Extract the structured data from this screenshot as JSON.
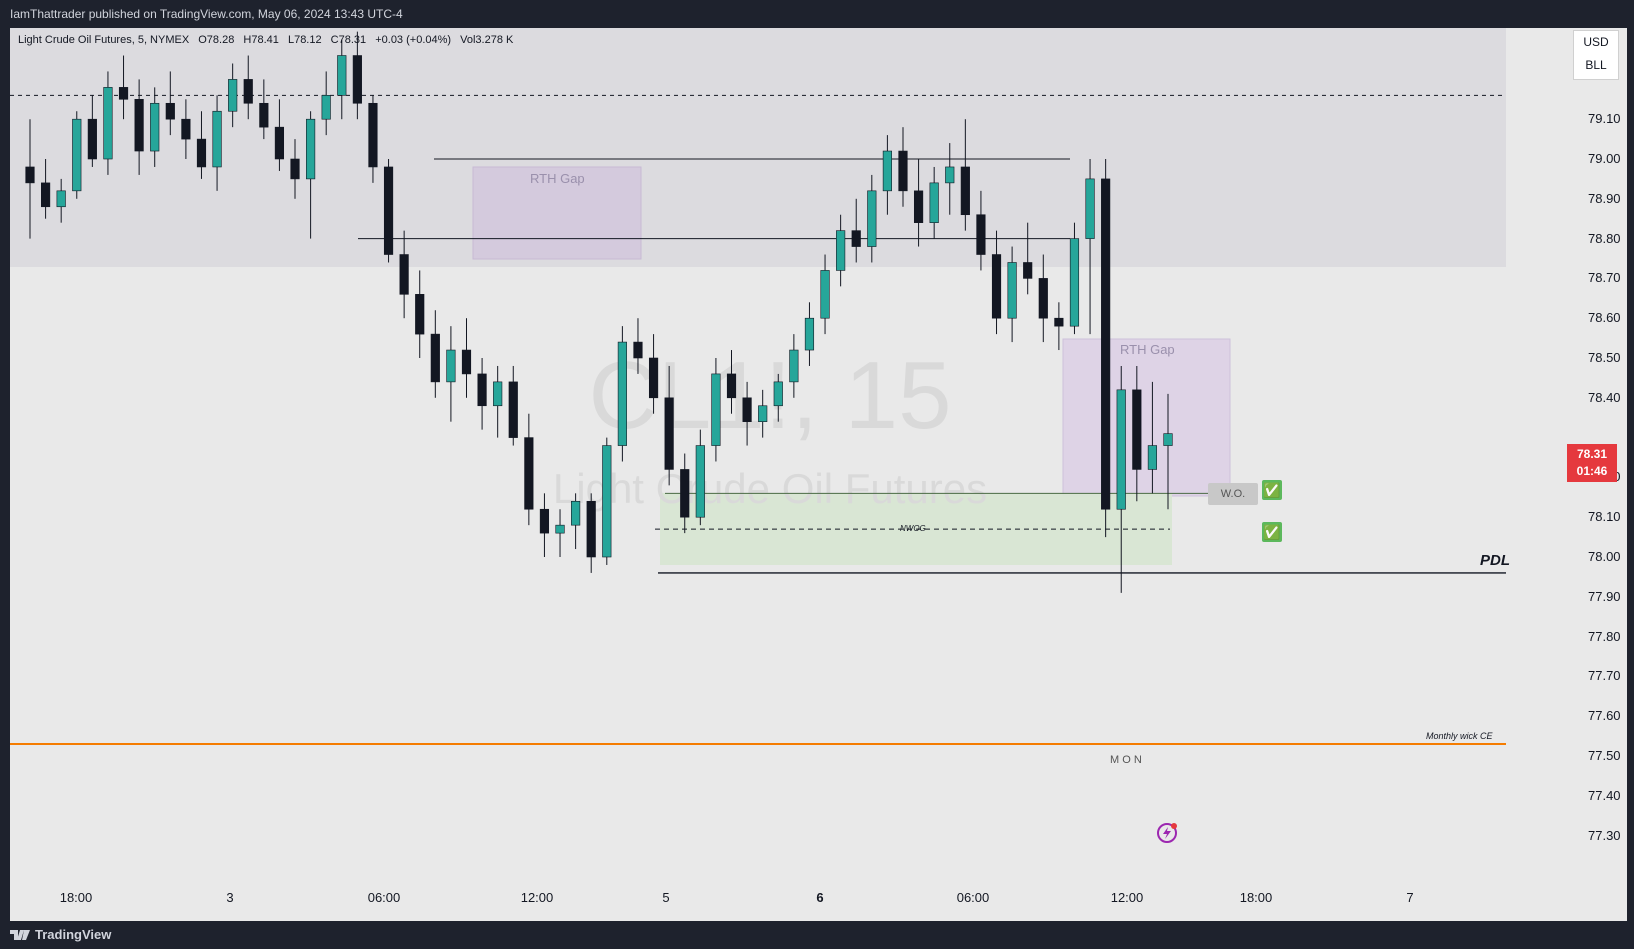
{
  "header": {
    "published": "IamThattrader published on TradingView.com, May 06, 2024 13:43 UTC-4"
  },
  "footer": {
    "brand": "TradingView"
  },
  "symbol": {
    "name": "Light Crude Oil Futures, 5, NYMEX",
    "open": "O78.28",
    "high": "H78.41",
    "low": "L78.12",
    "close": "C78.31",
    "change": "+0.03 (+0.04%)",
    "volume": "Vol3.278 K"
  },
  "currency": {
    "label": "USD",
    "unit": "BLL"
  },
  "current_price": {
    "price": "78.31",
    "countdown": "01:46"
  },
  "watermark": {
    "ticker": "CL1!, 15",
    "title": "Light Crude Oil Futures"
  },
  "annotations": {
    "rth_gap_1": "RTH Gap",
    "rth_gap_2": "RTH Gap",
    "nwog": "NWOG",
    "wo": "W.O.",
    "pdl": "PDL",
    "monthly_wick": "Monthly wick CE",
    "mon": "M O N",
    "check_1": "✅",
    "check_2": "✅"
  },
  "colors": {
    "up": "#26a69a",
    "down": "#131722",
    "accent": "#f57c00",
    "price_tag": "#e5393e"
  },
  "chart_data": {
    "type": "candlestick",
    "y_ticks": [
      "79.10",
      "79.00",
      "78.90",
      "78.80",
      "78.70",
      "78.60",
      "78.50",
      "78.40",
      "78.20",
      "78.10",
      "78.00",
      "77.90",
      "77.80",
      "77.70",
      "77.60",
      "77.50",
      "77.40",
      "77.30"
    ],
    "x_ticks": [
      {
        "label": "18:00",
        "bold": false
      },
      {
        "label": "3",
        "bold": false
      },
      {
        "label": "06:00",
        "bold": false
      },
      {
        "label": "12:00",
        "bold": false
      },
      {
        "label": "5",
        "bold": false
      },
      {
        "label": "6",
        "bold": true
      },
      {
        "label": "06:00",
        "bold": false
      },
      {
        "label": "12:00",
        "bold": false
      },
      {
        "label": "18:00",
        "bold": false
      },
      {
        "label": "7",
        "bold": false
      }
    ],
    "ylim": [
      77.25,
      79.25
    ],
    "levels": {
      "dashed_top": 79.16,
      "rth_high_line": 79.0,
      "rth_low_line": 78.8,
      "wo": 78.16,
      "nwog_mid": 78.07,
      "pdl": 77.96,
      "monthly_wick_ce": 77.53
    },
    "candles": [
      [
        78.98,
        79.1,
        78.8,
        78.94
      ],
      [
        78.94,
        79.0,
        78.85,
        78.88
      ],
      [
        78.88,
        78.95,
        78.84,
        78.92
      ],
      [
        78.92,
        79.12,
        78.9,
        79.1
      ],
      [
        79.1,
        79.16,
        78.98,
        79.0
      ],
      [
        79.0,
        79.22,
        78.96,
        79.18
      ],
      [
        79.18,
        79.26,
        79.1,
        79.15
      ],
      [
        79.15,
        79.2,
        78.96,
        79.02
      ],
      [
        79.02,
        79.18,
        78.98,
        79.14
      ],
      [
        79.14,
        79.22,
        79.06,
        79.1
      ],
      [
        79.1,
        79.15,
        79.0,
        79.05
      ],
      [
        79.05,
        79.12,
        78.95,
        78.98
      ],
      [
        78.98,
        79.16,
        78.92,
        79.12
      ],
      [
        79.12,
        79.24,
        79.08,
        79.2
      ],
      [
        79.2,
        79.26,
        79.1,
        79.14
      ],
      [
        79.14,
        79.2,
        79.05,
        79.08
      ],
      [
        79.08,
        79.15,
        78.97,
        79.0
      ],
      [
        79.0,
        79.05,
        78.9,
        78.95
      ],
      [
        78.95,
        79.12,
        78.8,
        79.1
      ],
      [
        79.1,
        79.22,
        79.06,
        79.16
      ],
      [
        79.16,
        79.3,
        79.1,
        79.26
      ],
      [
        79.26,
        79.32,
        79.1,
        79.14
      ],
      [
        79.14,
        79.16,
        78.94,
        78.98
      ],
      [
        78.98,
        79.0,
        78.74,
        78.76
      ],
      [
        78.76,
        78.82,
        78.6,
        78.66
      ],
      [
        78.66,
        78.72,
        78.5,
        78.56
      ],
      [
        78.56,
        78.62,
        78.4,
        78.44
      ],
      [
        78.44,
        78.58,
        78.34,
        78.52
      ],
      [
        78.52,
        78.6,
        78.4,
        78.46
      ],
      [
        78.46,
        78.5,
        78.32,
        78.38
      ],
      [
        78.38,
        78.48,
        78.3,
        78.44
      ],
      [
        78.44,
        78.48,
        78.28,
        78.3
      ],
      [
        78.3,
        78.36,
        78.08,
        78.12
      ],
      [
        78.12,
        78.16,
        78.0,
        78.06
      ],
      [
        78.06,
        78.12,
        78.0,
        78.08
      ],
      [
        78.08,
        78.16,
        78.02,
        78.14
      ],
      [
        78.14,
        78.16,
        77.96,
        78.0
      ],
      [
        78.0,
        78.3,
        77.98,
        78.28
      ],
      [
        78.28,
        78.58,
        78.24,
        78.54
      ],
      [
        78.54,
        78.6,
        78.46,
        78.5
      ],
      [
        78.5,
        78.56,
        78.36,
        78.4
      ],
      [
        78.4,
        78.48,
        78.18,
        78.22
      ],
      [
        78.22,
        78.26,
        78.06,
        78.1
      ],
      [
        78.1,
        78.32,
        78.08,
        78.28
      ],
      [
        78.28,
        78.5,
        78.24,
        78.46
      ],
      [
        78.46,
        78.52,
        78.36,
        78.4
      ],
      [
        78.4,
        78.44,
        78.28,
        78.34
      ],
      [
        78.34,
        78.42,
        78.3,
        78.38
      ],
      [
        78.38,
        78.46,
        78.34,
        78.44
      ],
      [
        78.44,
        78.56,
        78.4,
        78.52
      ],
      [
        78.52,
        78.64,
        78.48,
        78.6
      ],
      [
        78.6,
        78.76,
        78.56,
        78.72
      ],
      [
        78.72,
        78.86,
        78.68,
        78.82
      ],
      [
        78.82,
        78.9,
        78.74,
        78.78
      ],
      [
        78.78,
        78.96,
        78.74,
        78.92
      ],
      [
        78.92,
        79.06,
        78.86,
        79.02
      ],
      [
        79.02,
        79.08,
        78.88,
        78.92
      ],
      [
        78.92,
        79.0,
        78.78,
        78.84
      ],
      [
        78.84,
        78.98,
        78.8,
        78.94
      ],
      [
        78.94,
        79.04,
        78.86,
        78.98
      ],
      [
        78.98,
        79.1,
        78.82,
        78.86
      ],
      [
        78.86,
        78.92,
        78.72,
        78.76
      ],
      [
        78.76,
        78.82,
        78.56,
        78.6
      ],
      [
        78.6,
        78.78,
        78.54,
        78.74
      ],
      [
        78.74,
        78.84,
        78.66,
        78.7
      ],
      [
        78.7,
        78.76,
        78.54,
        78.6
      ],
      [
        78.6,
        78.64,
        78.52,
        78.58
      ],
      [
        78.58,
        78.84,
        78.56,
        78.8
      ],
      [
        78.8,
        79.0,
        78.56,
        78.95
      ],
      [
        78.95,
        79.0,
        78.05,
        78.12
      ],
      [
        78.12,
        78.48,
        77.91,
        78.42
      ],
      [
        78.42,
        78.48,
        78.14,
        78.22
      ],
      [
        78.22,
        78.44,
        78.16,
        78.28
      ],
      [
        78.28,
        78.41,
        78.12,
        78.31
      ]
    ]
  }
}
